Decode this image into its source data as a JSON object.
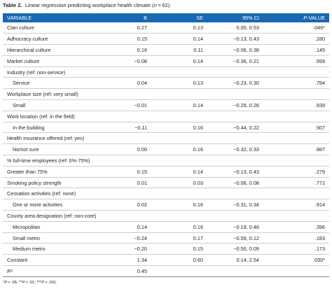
{
  "caption": {
    "label": "Table 2.",
    "text": "Linear regression predicting workplace health climate (n = 62)."
  },
  "header": {
    "variable": "VARIABLE",
    "b": "B",
    "se": "SE",
    "ci": "95% CI",
    "p": "P-VALUE"
  },
  "rows": [
    {
      "variable": "Clan culture",
      "b": "0.27",
      "se": "0.13",
      "ci": "0.00, 0.53",
      "p": ".046*"
    },
    {
      "variable": "Adhocracy culture",
      "b": "0.15",
      "se": "0.14",
      "ci": "−0.13, 0.43",
      "p": ".280"
    },
    {
      "variable": "Hierarchical culture",
      "b": "0.16",
      "se": "0.11",
      "ci": "−0.06, 0.38",
      "p": ".145"
    },
    {
      "variable": "Market culture",
      "b": "−0.08",
      "se": "0.14",
      "ci": "−0.36, 0.21",
      "p": ".599"
    },
    {
      "variable": "Industry (ref: non-service)",
      "b": "",
      "se": "",
      "ci": "",
      "p": ""
    },
    {
      "variable": "Service",
      "b": "0.04",
      "se": "0.13",
      "ci": "−0.23, 0.30",
      "p": ".784"
    },
    {
      "variable": "Workplace size (ref: very small)",
      "b": "",
      "se": "",
      "ci": "",
      "p": ""
    },
    {
      "variable": "Small",
      "b": "−0.01",
      "se": "0.14",
      "ci": "−0.29, 0.26",
      "p": ".939"
    },
    {
      "variable": "Work location (ref: in the field)",
      "b": "",
      "se": "",
      "ci": "",
      "p": ""
    },
    {
      "variable": "In the building",
      "b": "−0.11",
      "se": "0.16",
      "ci": "−0.44, 0.22",
      "p": ".507"
    },
    {
      "variable": "Health insurance offered (ref: yes)",
      "b": "",
      "se": "",
      "ci": "",
      "p": ""
    },
    {
      "variable": "No/not sure",
      "b": "0.00",
      "se": "0.16",
      "ci": "−0.32, 0.33",
      "p": ".987"
    },
    {
      "variable": "% full-time employees (ref: 0%-75%)",
      "b": "",
      "se": "",
      "ci": "",
      "p": ""
    },
    {
      "variable": "Greater than 75%",
      "b": "0.15",
      "se": "0.14",
      "ci": "−0.13, 0.43",
      "p": ".279"
    },
    {
      "variable": "Smoking policy strength",
      "b": "0.01",
      "se": "0.03",
      "ci": "−0.06, 0.08",
      "p": ".772"
    },
    {
      "variable": "Cessation activities (ref: none)",
      "b": "",
      "se": "",
      "ci": "",
      "p": ""
    },
    {
      "variable": "One or more activities",
      "b": "0.02",
      "se": "0.16",
      "ci": "−0.31, 0.34",
      "p": ".914"
    },
    {
      "variable": "County area designation (ref: non-core)",
      "b": "",
      "se": "",
      "ci": "",
      "p": ""
    },
    {
      "variable": "Micropolitan",
      "b": "0.14",
      "se": "0.16",
      "ci": "−0.19, 0.46",
      "p": ".396"
    },
    {
      "variable": "Small metro",
      "b": "−0.24",
      "se": "0.17",
      "ci": "−0.59, 0.12",
      "p": ".183"
    },
    {
      "variable": "Medium metro",
      "b": "−0.20",
      "se": "0.15",
      "ci": "−0.50, 0.09",
      "p": ".173"
    },
    {
      "variable": "Constant",
      "b": "1.34",
      "se": "0.60",
      "ci": "0.14, 2.54",
      "p": ".030*"
    },
    {
      "variable": "R²",
      "b": "0.45",
      "se": "",
      "ci": "",
      "p": ""
    }
  ],
  "footnote": "*P < .05; **P < .01; ***P < .001."
}
